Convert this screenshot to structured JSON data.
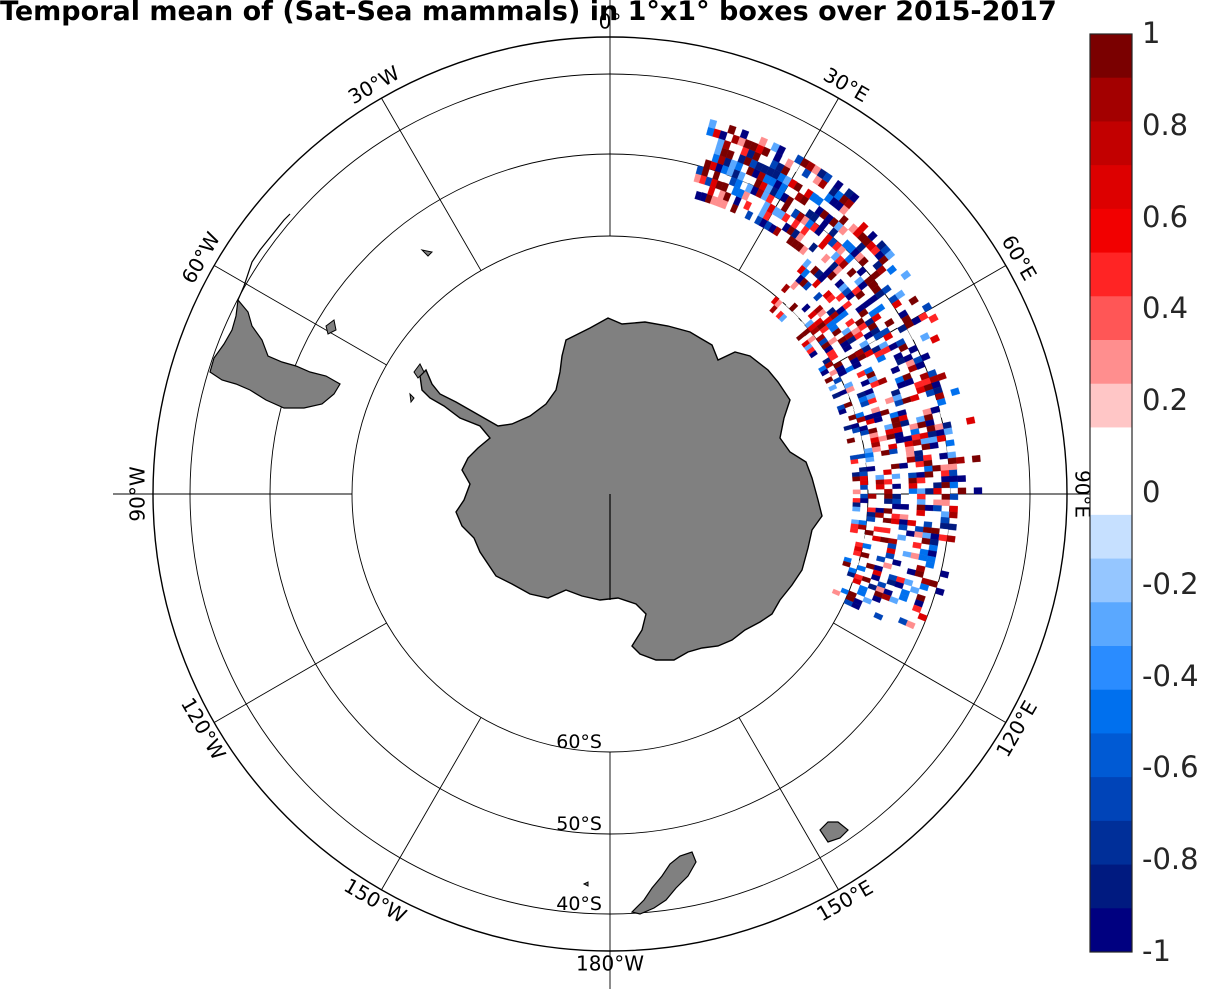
{
  "figure": {
    "title": "Temporal mean of (Sat-Sea mammals) in 1°x1° boxes over 2015-2017"
  },
  "chart_data": {
    "type": "heatmap",
    "projection": "south-polar-stereographic",
    "title": "Temporal mean of (Sat-Sea mammals) in 1°x1° boxes over 2015-2017",
    "grid": true,
    "land_color": "#808080",
    "latitude_labels": [
      "60°S",
      "50°S",
      "40°S"
    ],
    "meridian_labels": [
      {
        "lon": 0,
        "label": "0°"
      },
      {
        "lon": 30,
        "label": "30°E"
      },
      {
        "lon": 60,
        "label": "60°E"
      },
      {
        "lon": 90,
        "label": "90°E"
      },
      {
        "lon": 120,
        "label": "120°E"
      },
      {
        "lon": 150,
        "label": "150°E"
      },
      {
        "lon": 180,
        "label": "180°W"
      },
      {
        "lon": -150,
        "label": "150°W"
      },
      {
        "lon": -120,
        "label": "120°W"
      },
      {
        "lon": -90,
        "label": "90°W"
      },
      {
        "lon": -60,
        "label": "60°W"
      },
      {
        "lon": -30,
        "label": "30°W"
      }
    ],
    "data_coverage": {
      "lon_range": [
        15,
        115
      ],
      "lat_range": [
        -62,
        -40
      ],
      "cell_size_deg": 1,
      "value_range": [
        -1,
        1
      ]
    },
    "colorbar": {
      "range": [
        -1,
        1
      ],
      "ticks": [
        {
          "value": 1,
          "label": "1"
        },
        {
          "value": 0.8,
          "label": "0.8"
        },
        {
          "value": 0.6,
          "label": "0.6"
        },
        {
          "value": 0.4,
          "label": "0.4"
        },
        {
          "value": 0.2,
          "label": "0.2"
        },
        {
          "value": 0,
          "label": "0"
        },
        {
          "value": -0.2,
          "label": "-0.2"
        },
        {
          "value": -0.4,
          "label": "-0.4"
        },
        {
          "value": -0.6,
          "label": "-0.6"
        },
        {
          "value": -0.8,
          "label": "-0.8"
        },
        {
          "value": -1,
          "label": "-1"
        }
      ],
      "colors_top_to_bottom": [
        "#7a0000",
        "#a30000",
        "#c20000",
        "#dd0000",
        "#f20000",
        "#ff2424",
        "#ff5656",
        "#ff8e8e",
        "#ffc6c6",
        "#ffffff",
        "#ffffff",
        "#c6e0ff",
        "#95c6ff",
        "#5aa8ff",
        "#2a8cff",
        "#0070ee",
        "#005ad4",
        "#0044b8",
        "#002f99",
        "#001a80",
        "#000080"
      ]
    }
  }
}
